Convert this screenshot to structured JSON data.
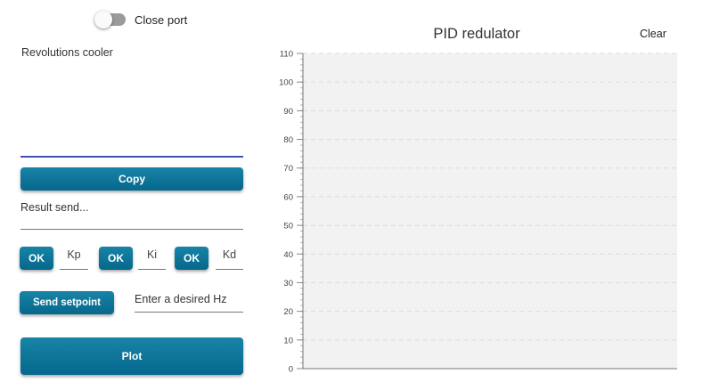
{
  "port": {
    "toggle_state": "off",
    "toggle_label": "Close port"
  },
  "output": {
    "text": "Revolutions cooler"
  },
  "copy_button": "Copy",
  "result": {
    "placeholder": "Result send..."
  },
  "pid": {
    "ok_label": "OK",
    "kp_placeholder": "Kp",
    "ki_placeholder": "Ki",
    "kd_placeholder": "Kd"
  },
  "setpoint": {
    "button_label": "Send setpoint",
    "placeholder": "Enter a desired Hz"
  },
  "plot_button": "Plot",
  "chart": {
    "clear_label": "Clear"
  },
  "chart_data": {
    "type": "line",
    "title": "PID redulator",
    "xlabel": "",
    "ylabel": "",
    "ylim": [
      0,
      110
    ],
    "yticks": [
      "0",
      "10",
      "20",
      "30",
      "40",
      "50",
      "60",
      "70",
      "80",
      "90",
      "100",
      "110"
    ],
    "series": [],
    "grid": true,
    "background": "#f2f2f2"
  },
  "colors": {
    "button_accent": "#0b6f95",
    "input_underline": "#3f51b5"
  }
}
